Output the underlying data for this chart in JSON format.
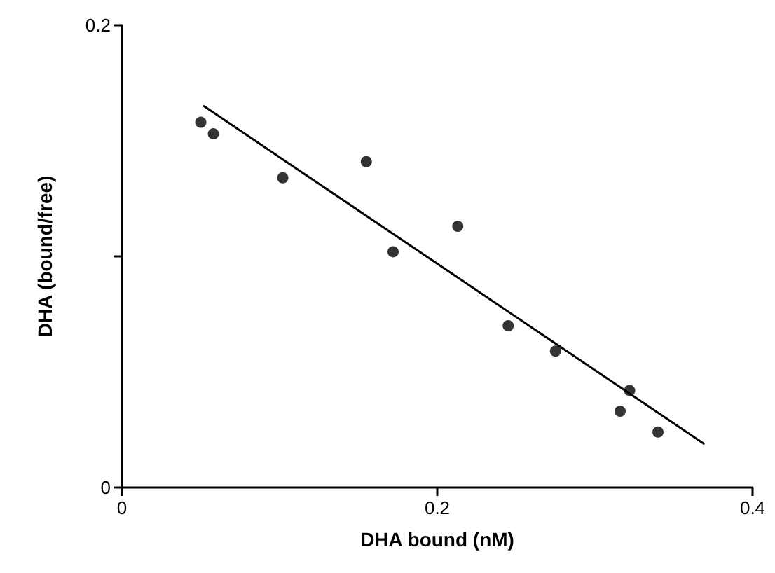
{
  "chart_data": {
    "type": "scatter",
    "xlabel": "DHA bound (nM)",
    "ylabel": "DHA (bound/free)",
    "xlim": [
      0,
      0.4
    ],
    "xticks": [
      0,
      0.2,
      0.4
    ],
    "ylim": [
      0,
      0.2
    ],
    "yticks": [
      0,
      {
        "value": 0.1,
        "label": null
      },
      0.2
    ],
    "grid": false,
    "marker": "circle",
    "series": [
      {
        "color": "#000000",
        "x": [
          0.05,
          0.058,
          0.102,
          0.155,
          0.172,
          0.213,
          0.245,
          0.275,
          0.316,
          0.322,
          0.34
        ],
        "values": [
          0.158,
          0.153,
          0.134,
          0.141,
          0.102,
          0.113,
          0.07,
          0.059,
          0.033,
          0.042,
          0.024
        ]
      },
      {
        "type": "line",
        "color": "#000000",
        "marker": "none",
        "line_style": "solid",
        "x": [
          0.052,
          0.369
        ],
        "values": [
          0.165,
          0.019
        ]
      }
    ]
  }
}
